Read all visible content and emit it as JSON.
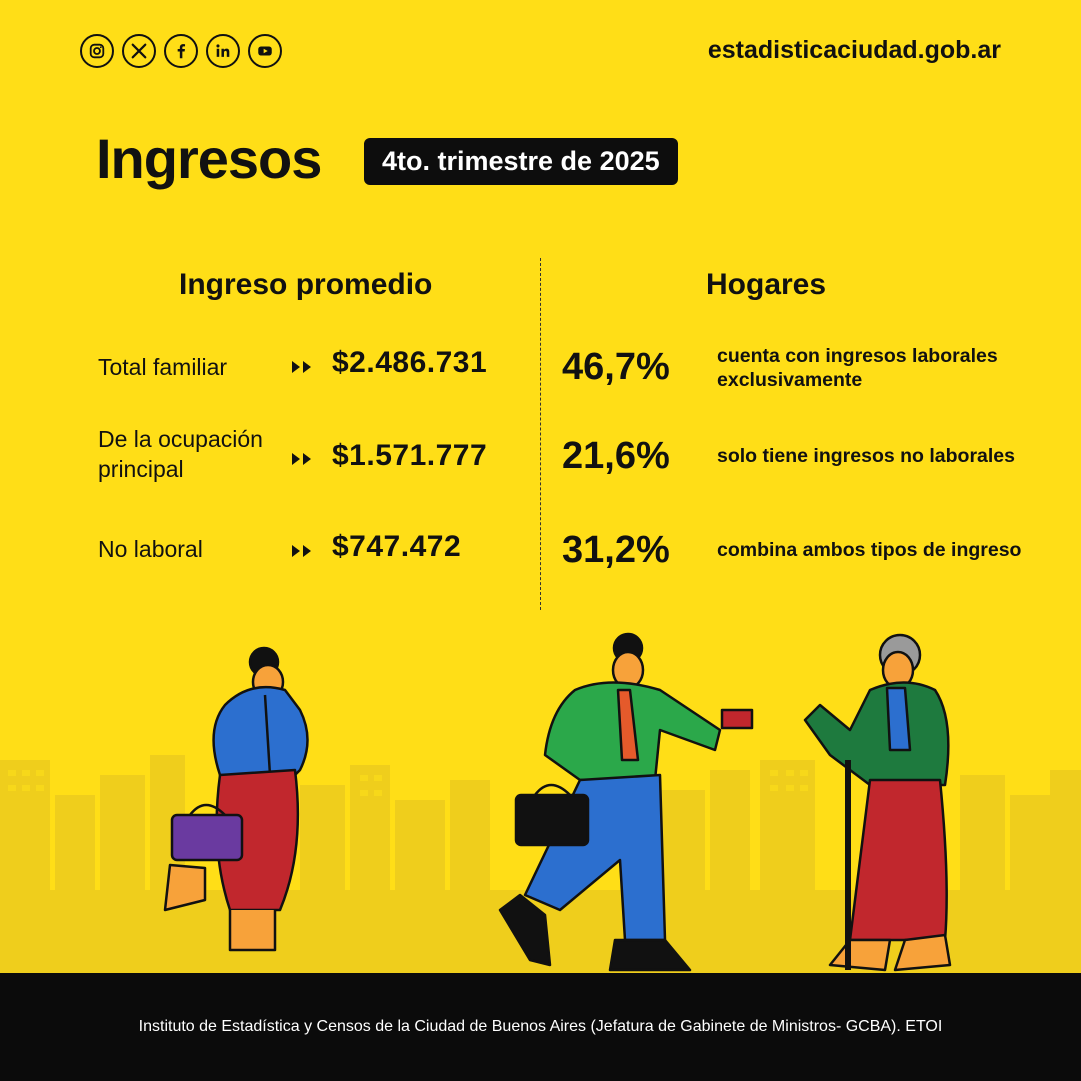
{
  "social": [
    {
      "icon": "instagram-icon"
    },
    {
      "icon": "x-icon"
    },
    {
      "icon": "facebook-icon"
    },
    {
      "icon": "linkedin-icon"
    },
    {
      "icon": "youtube-icon"
    }
  ],
  "site_url": "estadisticaciudad.gob.ar",
  "title": "Ingresos",
  "period": "4to. trimestre de 2025",
  "income": {
    "heading": "Ingreso promedio",
    "rows": [
      {
        "label": "Total familiar",
        "value": "$2.486.731"
      },
      {
        "label": "De la ocupación principal",
        "value": "$1.571.777"
      },
      {
        "label": "No laboral",
        "value": "$747.472"
      }
    ]
  },
  "households": {
    "heading": "Hogares",
    "rows": [
      {
        "pct": "46,7%",
        "desc": "cuenta con ingresos laborales exclusivamente"
      },
      {
        "pct": "21,6%",
        "desc": "solo tiene ingresos no laborales"
      },
      {
        "pct": "31,2%",
        "desc": "combina ambos tipos de ingreso"
      }
    ]
  },
  "footer": "Instituto de Estadística y Censos de la Ciudad de Buenos Aires (Jefatura de Gabinete de Ministros- GCBA). ETOI",
  "colors": {
    "background": "#FFDE17",
    "badge": "#0D0D0D",
    "footer": "#0B0B0B",
    "skyline": "#EFCE1C"
  }
}
